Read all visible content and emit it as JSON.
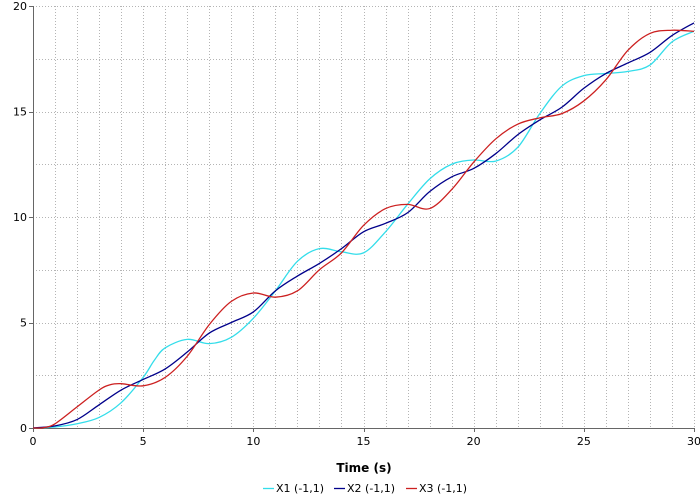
{
  "chart_data": {
    "type": "line",
    "title": "",
    "xlabel": "Time (s)",
    "ylabel": "",
    "xlim": [
      0,
      30
    ],
    "ylim": [
      0,
      20
    ],
    "x_ticks": [
      0,
      5,
      10,
      15,
      20,
      25,
      30
    ],
    "y_ticks": [
      0,
      5,
      10,
      15,
      20
    ],
    "grid": true,
    "legend_position": "bottom",
    "series": [
      {
        "name": "X1 (-1,1)",
        "color": "#33ddea",
        "x": [
          0,
          1,
          2,
          3,
          4,
          5,
          5.5,
          6,
          7,
          8,
          9,
          10,
          11,
          12,
          13,
          14,
          15,
          16,
          17,
          18,
          19,
          20,
          21,
          22,
          23,
          24,
          25,
          26,
          27,
          28,
          29,
          30
        ],
        "y": [
          0,
          0.05,
          0.2,
          0.5,
          1.2,
          2.4,
          3.2,
          3.8,
          4.2,
          4.0,
          4.3,
          5.2,
          6.5,
          7.9,
          8.5,
          8.35,
          8.3,
          9.3,
          10.6,
          11.8,
          12.5,
          12.7,
          12.65,
          13.3,
          14.9,
          16.2,
          16.7,
          16.8,
          16.9,
          17.2,
          18.3,
          18.8
        ]
      },
      {
        "name": "X2 (-1,1)",
        "color": "#00008b",
        "x": [
          0,
          1,
          2,
          3,
          4,
          5,
          6,
          7,
          8,
          9,
          10,
          11,
          12,
          13,
          14,
          15,
          16,
          17,
          18,
          19,
          20,
          21,
          22,
          23,
          24,
          25,
          26,
          27,
          28,
          29,
          30
        ],
        "y": [
          0,
          0.1,
          0.4,
          1.1,
          1.8,
          2.3,
          2.8,
          3.6,
          4.5,
          5.0,
          5.5,
          6.5,
          7.2,
          7.8,
          8.5,
          9.3,
          9.7,
          10.2,
          11.2,
          11.9,
          12.3,
          13.0,
          13.9,
          14.6,
          15.2,
          16.1,
          16.8,
          17.3,
          17.8,
          18.6,
          19.2
        ]
      },
      {
        "name": "X3 (-1,1)",
        "color": "#cc2020",
        "x": [
          0,
          0.5,
          1,
          2,
          3,
          3.5,
          4,
          5,
          6,
          7,
          8,
          9,
          10,
          11,
          12,
          13,
          14,
          15,
          16,
          17,
          18,
          19,
          20,
          21,
          22,
          23,
          24,
          25,
          26,
          27,
          28,
          29,
          30
        ],
        "y": [
          0,
          0.02,
          0.2,
          1.0,
          1.8,
          2.05,
          2.1,
          2.0,
          2.4,
          3.4,
          4.9,
          6.0,
          6.4,
          6.2,
          6.5,
          7.5,
          8.3,
          9.6,
          10.4,
          10.6,
          10.4,
          11.3,
          12.6,
          13.7,
          14.4,
          14.7,
          14.9,
          15.5,
          16.5,
          17.9,
          18.7,
          18.85,
          18.8
        ]
      }
    ]
  }
}
